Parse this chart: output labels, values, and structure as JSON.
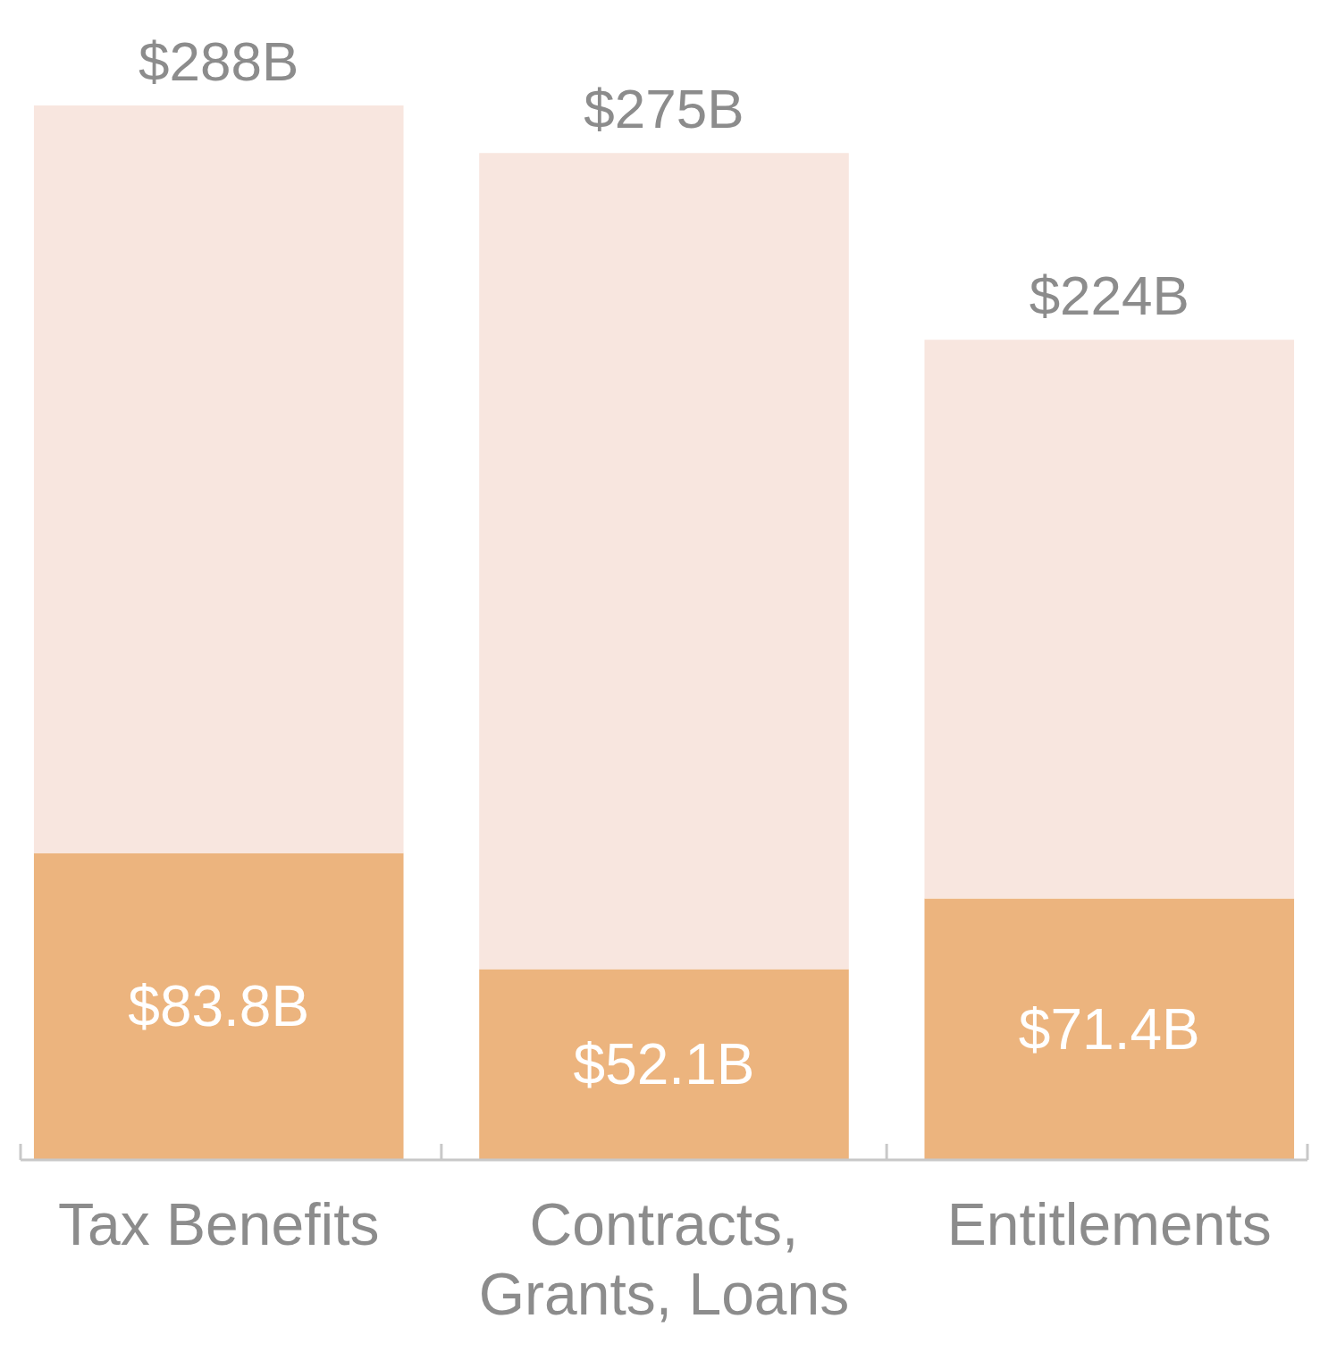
{
  "chart_data": {
    "type": "bar",
    "stacked": true,
    "categories": [
      "Tax Benefits",
      "Contracts, Grants, Loans",
      "Entitlements"
    ],
    "series": [
      {
        "color": "#ecb47e",
        "values": [
          83.8,
          52.1,
          71.4
        ],
        "value_labels": [
          "$83.8B",
          "$52.1B",
          "$71.4B"
        ]
      },
      {
        "color": "#f8e6df",
        "values": [
          204.2,
          222.9,
          152.6
        ]
      }
    ],
    "totals": [
      "$288B",
      "$275B",
      "$224B"
    ]
  }
}
